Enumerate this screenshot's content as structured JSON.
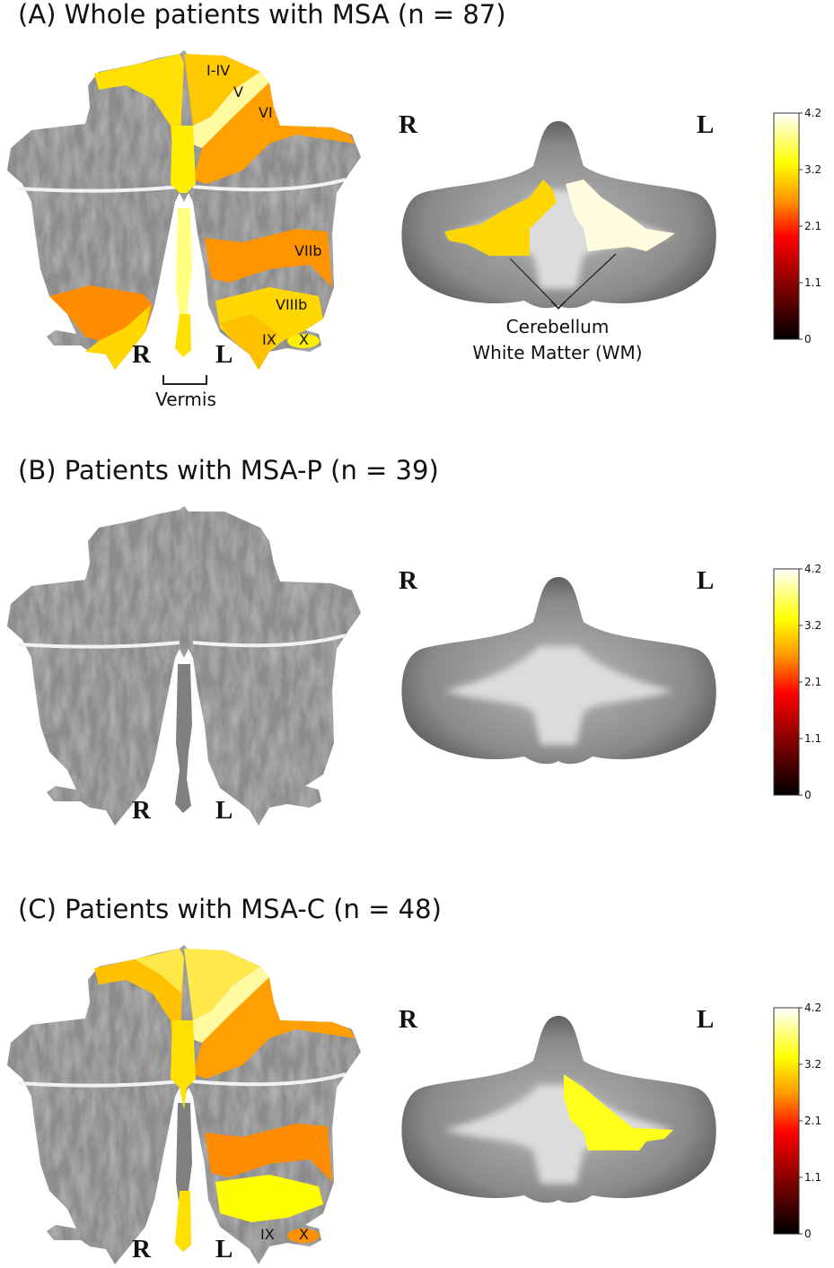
{
  "panels": [
    {
      "title": "(A) Whole patients with MSA (n = 87)",
      "lobules": [
        "I-IV",
        "V",
        "VI",
        "VIIb",
        "VIIIb",
        "IX",
        "X"
      ],
      "vermis_label": "Vermis",
      "wm_label_1": "Cerebellum",
      "wm_label_2": "White Matter (WM)"
    },
    {
      "title": "(B) Patients with MSA-P (n = 39)"
    },
    {
      "title": "(C) Patients with MSA-C (n = 48)",
      "lobules": [
        "IX",
        "X"
      ]
    }
  ],
  "orientation": {
    "right": "R",
    "left": "L"
  },
  "colorbar": {
    "ticks": [
      "4.2",
      "3.2",
      "2.1",
      "1.1",
      "0"
    ],
    "min": 0,
    "max": 4.2,
    "colormap": [
      "#000000",
      "#8b0000",
      "#ff0000",
      "#ff9900",
      "#ffff00",
      "#ffffff"
    ]
  },
  "colors": {
    "yellow": "#ffe000",
    "light_yellow": "#fffaa0",
    "orange": "#ffa000",
    "dark_orange": "#ff8c00",
    "cream": "#fffce0"
  }
}
